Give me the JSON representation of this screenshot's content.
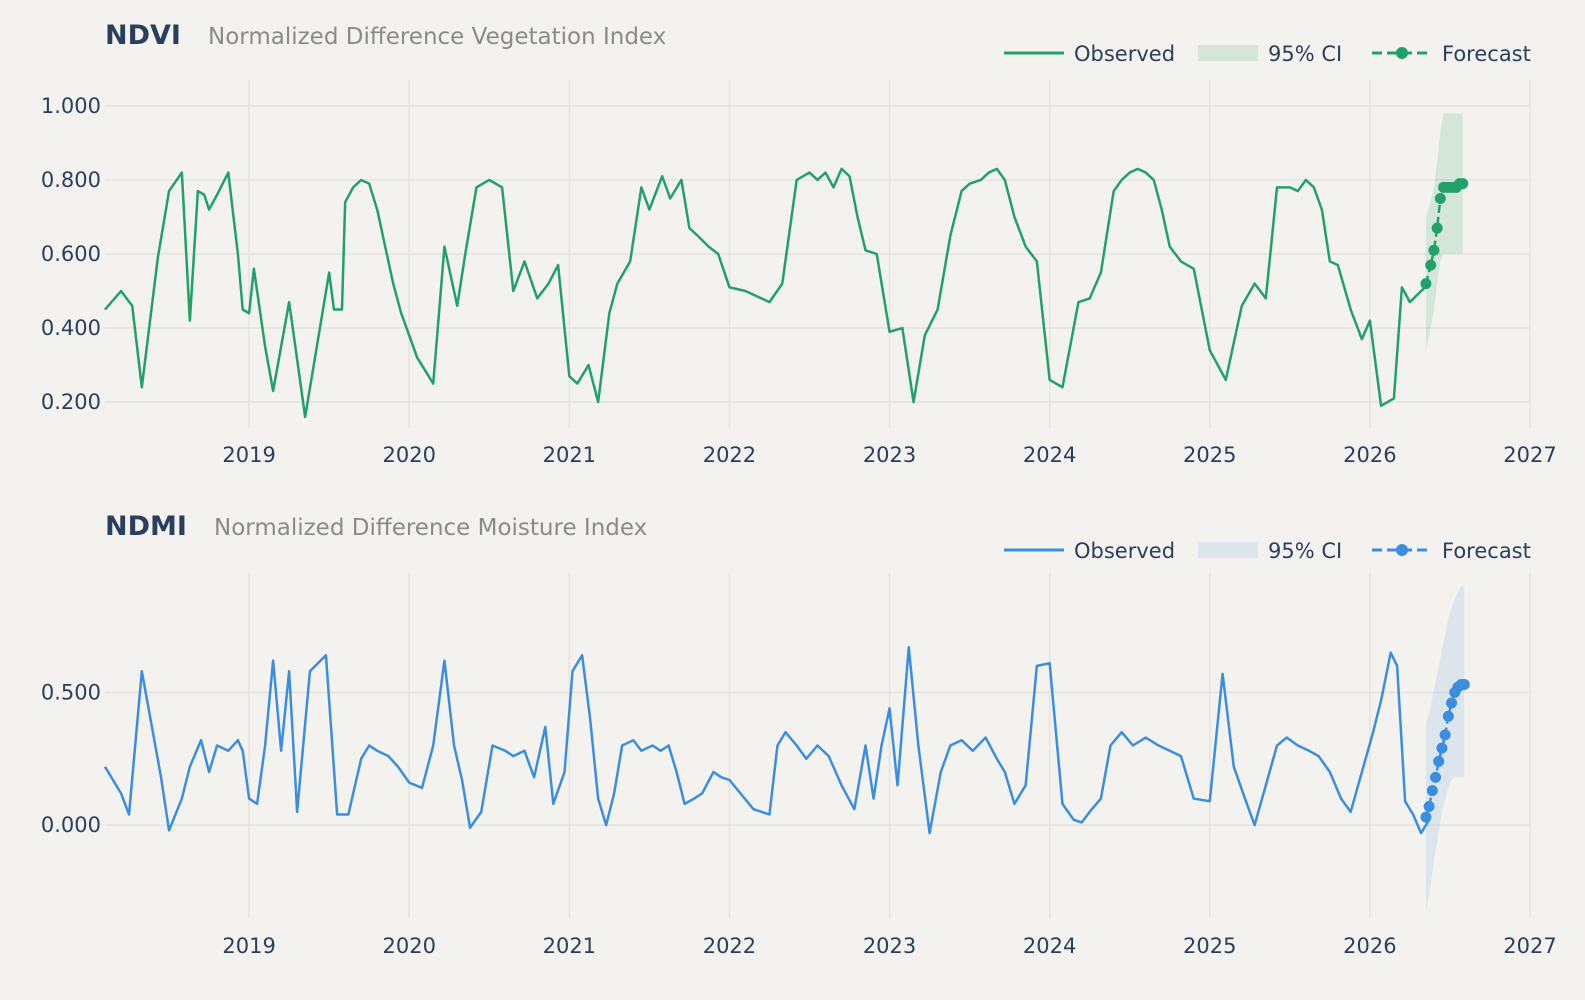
{
  "charts": [
    {
      "id": "ndvi",
      "title": "NDVI",
      "subtitle": "Normalized Difference Vegetation Index",
      "color": "#22a06b",
      "ci_color": "rgba(34,160,107,0.15)",
      "legend": {
        "observed": "Observed",
        "ci": "95% CI",
        "forecast": "Forecast"
      },
      "x_ticks": [
        "2019",
        "2020",
        "2021",
        "2022",
        "2023",
        "2024",
        "2025",
        "2026",
        "2027"
      ],
      "y_ticks": [
        {
          "value": 0.2,
          "label": "0.200"
        },
        {
          "value": 0.4,
          "label": "0.400"
        },
        {
          "value": 0.6,
          "label": "0.600"
        },
        {
          "value": 0.8,
          "label": "0.800"
        },
        {
          "value": 1.0,
          "label": "1.000"
        }
      ]
    },
    {
      "id": "ndmi",
      "title": "NDMI",
      "subtitle": "Normalized Difference Moisture Index",
      "color": "#3a8ee0",
      "ci_color": "rgba(58,142,224,0.13)",
      "legend": {
        "observed": "Observed",
        "ci": "95% CI",
        "forecast": "Forecast"
      },
      "x_ticks": [
        "2019",
        "2020",
        "2021",
        "2022",
        "2023",
        "2024",
        "2025",
        "2026",
        "2027"
      ],
      "y_ticks": [
        {
          "value": 0.0,
          "label": "0.000"
        },
        {
          "value": 0.5,
          "label": "0.500"
        }
      ]
    }
  ],
  "chart_data": [
    {
      "type": "line",
      "title": "NDVI",
      "subtitle": "Normalized Difference Vegetation Index",
      "xlim": [
        2018.1,
        2027.0
      ],
      "ylim": [
        0.13,
        1.07
      ],
      "grid": true,
      "legend_position": "top-right",
      "series": [
        {
          "name": "Observed",
          "x": [
            2018.1,
            2018.2,
            2018.27,
            2018.33,
            2018.43,
            2018.5,
            2018.58,
            2018.63,
            2018.68,
            2018.72,
            2018.75,
            2018.8,
            2018.87,
            2018.93,
            2018.96,
            2019.0,
            2019.03,
            2019.1,
            2019.15,
            2019.25,
            2019.35,
            2019.5,
            2019.53,
            2019.58,
            2019.6,
            2019.65,
            2019.7,
            2019.75,
            2019.8,
            2019.85,
            2019.9,
            2019.95,
            2020.05,
            2020.15,
            2020.22,
            2020.3,
            2020.35,
            2020.42,
            2020.5,
            2020.58,
            2020.65,
            2020.72,
            2020.8,
            2020.87,
            2020.93,
            2021.0,
            2021.05,
            2021.12,
            2021.18,
            2021.25,
            2021.3,
            2021.38,
            2021.45,
            2021.5,
            2021.58,
            2021.63,
            2021.7,
            2021.75,
            2021.8,
            2021.87,
            2021.93,
            2022.0,
            2022.1,
            2022.25,
            2022.33,
            2022.42,
            2022.5,
            2022.55,
            2022.6,
            2022.65,
            2022.7,
            2022.75,
            2022.8,
            2022.85,
            2022.92,
            2023.0,
            2023.08,
            2023.15,
            2023.22,
            2023.3,
            2023.38,
            2023.45,
            2023.5,
            2023.57,
            2023.62,
            2023.67,
            2023.72,
            2023.78,
            2023.85,
            2023.92,
            2024.0,
            2024.08,
            2024.18,
            2024.25,
            2024.32,
            2024.4,
            2024.45,
            2024.5,
            2024.55,
            2024.6,
            2024.65,
            2024.7,
            2024.75,
            2024.82,
            2024.9,
            2025.0,
            2025.1,
            2025.2,
            2025.28,
            2025.35,
            2025.42,
            2025.5,
            2025.55,
            2025.6,
            2025.65,
            2025.7,
            2025.75,
            2025.8,
            2025.88,
            2025.95,
            2026.0,
            2026.07,
            2026.15,
            2026.2,
            2026.25,
            2026.32,
            2026.37
          ],
          "y": [
            0.45,
            0.5,
            0.46,
            0.24,
            0.59,
            0.77,
            0.82,
            0.42,
            0.77,
            0.76,
            0.72,
            0.76,
            0.82,
            0.6,
            0.45,
            0.44,
            0.56,
            0.35,
            0.23,
            0.47,
            0.16,
            0.55,
            0.45,
            0.45,
            0.74,
            0.78,
            0.8,
            0.79,
            0.72,
            0.62,
            0.52,
            0.44,
            0.32,
            0.25,
            0.62,
            0.46,
            0.6,
            0.78,
            0.8,
            0.78,
            0.5,
            0.58,
            0.48,
            0.52,
            0.57,
            0.27,
            0.25,
            0.3,
            0.2,
            0.44,
            0.52,
            0.58,
            0.78,
            0.72,
            0.81,
            0.75,
            0.8,
            0.67,
            0.65,
            0.62,
            0.6,
            0.51,
            0.5,
            0.47,
            0.52,
            0.8,
            0.82,
            0.8,
            0.82,
            0.78,
            0.83,
            0.81,
            0.7,
            0.61,
            0.6,
            0.39,
            0.4,
            0.2,
            0.38,
            0.45,
            0.65,
            0.77,
            0.79,
            0.8,
            0.82,
            0.83,
            0.8,
            0.7,
            0.62,
            0.58,
            0.26,
            0.24,
            0.47,
            0.48,
            0.55,
            0.77,
            0.8,
            0.82,
            0.83,
            0.82,
            0.8,
            0.72,
            0.62,
            0.58,
            0.56,
            0.34,
            0.26,
            0.46,
            0.52,
            0.48,
            0.78,
            0.78,
            0.77,
            0.8,
            0.78,
            0.72,
            0.58,
            0.57,
            0.45,
            0.37,
            0.42,
            0.19,
            0.21,
            0.51,
            0.47,
            0.5,
            0.52
          ]
        },
        {
          "name": "Forecast",
          "x": [
            2026.35,
            2026.38,
            2026.4,
            2026.42,
            2026.44,
            2026.46,
            2026.48,
            2026.5,
            2026.52,
            2026.54,
            2026.56,
            2026.58
          ],
          "y": [
            0.52,
            0.57,
            0.61,
            0.67,
            0.75,
            0.78,
            0.78,
            0.78,
            0.78,
            0.78,
            0.79,
            0.79
          ],
          "ci_lower": [
            0.34,
            0.4,
            0.45,
            0.52,
            0.58,
            0.6,
            0.6,
            0.6,
            0.6,
            0.6,
            0.6,
            0.6
          ],
          "ci_upper": [
            0.7,
            0.74,
            0.78,
            0.85,
            0.93,
            0.98,
            0.98,
            0.98,
            0.98,
            0.98,
            0.98,
            0.98
          ]
        }
      ]
    },
    {
      "type": "line",
      "title": "NDMI",
      "subtitle": "Normalized Difference Moisture Index",
      "xlim": [
        2018.1,
        2027.0
      ],
      "ylim": [
        -0.35,
        0.95
      ],
      "grid": true,
      "legend_position": "top-right",
      "series": [
        {
          "name": "Observed",
          "x": [
            2018.1,
            2018.2,
            2018.25,
            2018.33,
            2018.45,
            2018.5,
            2018.58,
            2018.63,
            2018.7,
            2018.75,
            2018.8,
            2018.87,
            2018.93,
            2018.96,
            2019.0,
            2019.05,
            2019.1,
            2019.15,
            2019.2,
            2019.25,
            2019.3,
            2019.38,
            2019.48,
            2019.55,
            2019.62,
            2019.7,
            2019.75,
            2019.8,
            2019.87,
            2019.93,
            2020.0,
            2020.08,
            2020.15,
            2020.22,
            2020.28,
            2020.33,
            2020.38,
            2020.45,
            2020.52,
            2020.6,
            2020.65,
            2020.72,
            2020.78,
            2020.85,
            2020.9,
            2020.97,
            2021.02,
            2021.08,
            2021.13,
            2021.18,
            2021.23,
            2021.28,
            2021.33,
            2021.4,
            2021.45,
            2021.52,
            2021.57,
            2021.62,
            2021.67,
            2021.72,
            2021.78,
            2021.83,
            2021.9,
            2021.95,
            2022.0,
            2022.15,
            2022.25,
            2022.3,
            2022.35,
            2022.42,
            2022.48,
            2022.55,
            2022.62,
            2022.7,
            2022.78,
            2022.85,
            2022.9,
            2022.95,
            2023.0,
            2023.05,
            2023.12,
            2023.18,
            2023.25,
            2023.32,
            2023.38,
            2023.45,
            2023.52,
            2023.6,
            2023.67,
            2023.72,
            2023.78,
            2023.85,
            2023.92,
            2024.0,
            2024.08,
            2024.15,
            2024.2,
            2024.25,
            2024.32,
            2024.38,
            2024.45,
            2024.52,
            2024.6,
            2024.68,
            2024.75,
            2024.82,
            2024.9,
            2025.0,
            2025.08,
            2025.15,
            2025.22,
            2025.28,
            2025.35,
            2025.42,
            2025.48,
            2025.55,
            2025.62,
            2025.68,
            2025.75,
            2025.82,
            2025.88,
            2025.95,
            2026.02,
            2026.07,
            2026.13,
            2026.17,
            2026.22,
            2026.27,
            2026.32,
            2026.37
          ],
          "y": [
            0.22,
            0.12,
            0.04,
            0.58,
            0.18,
            -0.02,
            0.1,
            0.22,
            0.32,
            0.2,
            0.3,
            0.28,
            0.32,
            0.28,
            0.1,
            0.08,
            0.3,
            0.62,
            0.28,
            0.58,
            0.05,
            0.58,
            0.64,
            0.04,
            0.04,
            0.25,
            0.3,
            0.28,
            0.26,
            0.22,
            0.16,
            0.14,
            0.3,
            0.62,
            0.3,
            0.17,
            -0.01,
            0.05,
            0.3,
            0.28,
            0.26,
            0.28,
            0.18,
            0.37,
            0.08,
            0.2,
            0.58,
            0.64,
            0.4,
            0.1,
            0.0,
            0.12,
            0.3,
            0.32,
            0.28,
            0.3,
            0.28,
            0.3,
            0.2,
            0.08,
            0.1,
            0.12,
            0.2,
            0.18,
            0.17,
            0.06,
            0.04,
            0.3,
            0.35,
            0.3,
            0.25,
            0.3,
            0.26,
            0.15,
            0.06,
            0.3,
            0.1,
            0.3,
            0.44,
            0.15,
            0.67,
            0.3,
            -0.03,
            0.2,
            0.3,
            0.32,
            0.28,
            0.33,
            0.25,
            0.2,
            0.08,
            0.15,
            0.6,
            0.61,
            0.08,
            0.02,
            0.01,
            0.05,
            0.1,
            0.3,
            0.35,
            0.3,
            0.33,
            0.3,
            0.28,
            0.26,
            0.1,
            0.09,
            0.57,
            0.22,
            0.1,
            0.0,
            0.15,
            0.3,
            0.33,
            0.3,
            0.28,
            0.26,
            0.2,
            0.1,
            0.05,
            0.2,
            0.35,
            0.47,
            0.65,
            0.6,
            0.09,
            0.04,
            -0.03,
            0.02
          ]
        },
        {
          "name": "Forecast",
          "x": [
            2026.35,
            2026.37,
            2026.39,
            2026.41,
            2026.43,
            2026.45,
            2026.47,
            2026.49,
            2026.51,
            2026.53,
            2026.55,
            2026.57,
            2026.59
          ],
          "y": [
            0.03,
            0.07,
            0.13,
            0.18,
            0.24,
            0.29,
            0.34,
            0.41,
            0.46,
            0.5,
            0.52,
            0.53,
            0.53
          ],
          "ci_lower": [
            -0.32,
            -0.26,
            -0.18,
            -0.1,
            -0.02,
            0.05,
            0.1,
            0.14,
            0.17,
            0.18,
            0.18,
            0.18,
            0.18
          ],
          "ci_upper": [
            0.38,
            0.42,
            0.48,
            0.54,
            0.6,
            0.66,
            0.72,
            0.78,
            0.82,
            0.85,
            0.88,
            0.9,
            0.9
          ]
        }
      ]
    }
  ]
}
